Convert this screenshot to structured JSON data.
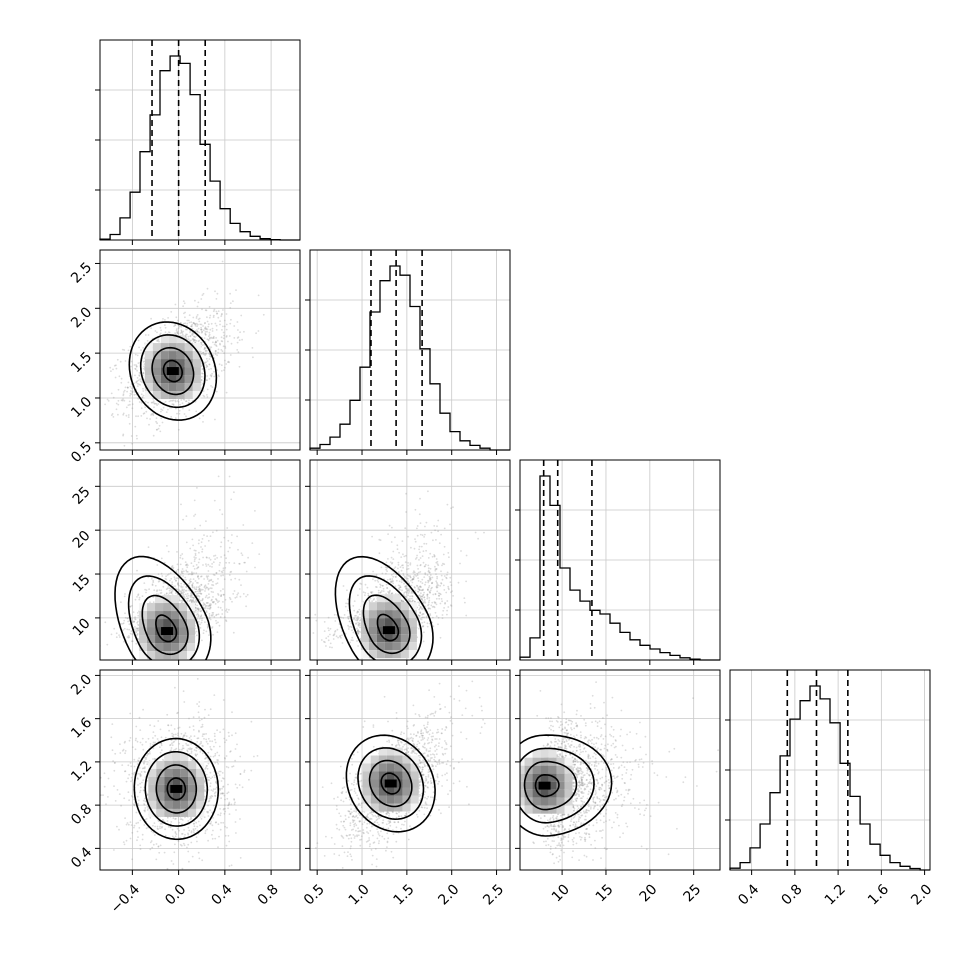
{
  "chart_data": {
    "type": "corner",
    "parameters": [
      {
        "range": [
          -0.68,
          1.05
        ],
        "ticks": [
          "−0.4",
          "0.0",
          "0.4",
          "0.8"
        ],
        "tick_values": [
          -0.4,
          0.0,
          0.4,
          0.8
        ],
        "quantiles": [
          -0.23,
          0.0,
          0.23
        ]
      },
      {
        "range": [
          0.42,
          2.65
        ],
        "ticks": [
          "0.5",
          "1.0",
          "1.5",
          "2.0",
          "2.5"
        ],
        "tick_values": [
          0.5,
          1.0,
          1.5,
          2.0,
          2.5
        ],
        "quantiles": [
          1.1,
          1.38,
          1.67
        ]
      },
      {
        "range": [
          5.2,
          28.0
        ],
        "ticks": [
          "10",
          "15",
          "20",
          "25"
        ],
        "tick_values": [
          10,
          15,
          20,
          25
        ],
        "quantiles": [
          7.9,
          9.5,
          13.4
        ]
      },
      {
        "range": [
          0.2,
          2.05
        ],
        "ticks": [
          "0.4",
          "0.8",
          "1.2",
          "1.6",
          "2.0"
        ],
        "tick_values": [
          0.4,
          0.8,
          1.2,
          1.6,
          2.0
        ],
        "quantiles": [
          0.73,
          1.0,
          1.29
        ]
      }
    ],
    "histograms": [
      {
        "bins": [
          -0.68,
          -0.593,
          -0.507,
          -0.42,
          -0.334,
          -0.247,
          -0.161,
          -0.074,
          0.013,
          0.099,
          0.186,
          0.272,
          0.359,
          0.446,
          0.532,
          0.619,
          0.705,
          0.792,
          0.878,
          0.965,
          1.05
        ],
        "counts": [
          0.005,
          0.03,
          0.12,
          0.26,
          0.48,
          0.68,
          0.92,
          1.0,
          0.96,
          0.79,
          0.52,
          0.32,
          0.17,
          0.09,
          0.045,
          0.02,
          0.007,
          0.002,
          0.0,
          0.0
        ]
      },
      {
        "bins": [
          0.42,
          0.532,
          0.643,
          0.755,
          0.866,
          0.978,
          1.089,
          1.2,
          1.312,
          1.423,
          1.535,
          1.647,
          1.758,
          1.87,
          1.981,
          2.093,
          2.204,
          2.316,
          2.427,
          2.539,
          2.65
        ],
        "counts": [
          0.01,
          0.03,
          0.07,
          0.14,
          0.27,
          0.45,
          0.75,
          0.92,
          1.0,
          0.95,
          0.78,
          0.55,
          0.36,
          0.2,
          0.1,
          0.05,
          0.025,
          0.01,
          0.0,
          0.0
        ]
      },
      {
        "bins": [
          5.2,
          6.34,
          7.48,
          8.62,
          9.76,
          10.9,
          12.04,
          13.18,
          14.32,
          15.46,
          16.6,
          17.74,
          18.88,
          20.02,
          21.16,
          22.3,
          23.44,
          24.58,
          25.72,
          26.86,
          28.0
        ],
        "counts": [
          0.015,
          0.12,
          1.0,
          0.84,
          0.5,
          0.38,
          0.32,
          0.27,
          0.25,
          0.2,
          0.15,
          0.11,
          0.08,
          0.06,
          0.04,
          0.025,
          0.012,
          0.005,
          0.0,
          0.0
        ]
      },
      {
        "bins": [
          0.2,
          0.293,
          0.385,
          0.478,
          0.57,
          0.663,
          0.755,
          0.848,
          0.94,
          1.033,
          1.125,
          1.218,
          1.31,
          1.403,
          1.495,
          1.588,
          1.68,
          1.773,
          1.865,
          1.958,
          2.05
        ],
        "counts": [
          0.01,
          0.04,
          0.12,
          0.25,
          0.42,
          0.62,
          0.82,
          0.92,
          1.0,
          0.93,
          0.8,
          0.58,
          0.4,
          0.25,
          0.14,
          0.08,
          0.04,
          0.02,
          0.008,
          0.0
        ]
      }
    ],
    "pairs": [
      {
        "row": 1,
        "col": 0,
        "mean": [
          0.0,
          1.38
        ],
        "sd": [
          0.23,
          0.3
        ],
        "rho": 0.45,
        "mode": [
          -0.05,
          1.3
        ],
        "skew": [
          0,
          0
        ]
      },
      {
        "row": 2,
        "col": 0,
        "mean": [
          0.0,
          11.0
        ],
        "sd": [
          0.23,
          4.0
        ],
        "rho": 0.5,
        "mode": [
          -0.1,
          8.5
        ],
        "skew": [
          0,
          1
        ]
      },
      {
        "row": 2,
        "col": 1,
        "mean": [
          1.38,
          11.0
        ],
        "sd": [
          0.3,
          4.0
        ],
        "rho": 0.55,
        "mode": [
          1.3,
          8.6
        ],
        "skew": [
          0,
          1
        ]
      },
      {
        "row": 3,
        "col": 0,
        "mean": [
          0.0,
          1.0
        ],
        "sd": [
          0.23,
          0.29
        ],
        "rho": 0.05,
        "mode": [
          -0.02,
          0.95
        ],
        "skew": [
          0,
          0
        ]
      },
      {
        "row": 3,
        "col": 1,
        "mean": [
          1.38,
          1.0
        ],
        "sd": [
          0.3,
          0.29
        ],
        "rho": 0.6,
        "mode": [
          1.32,
          1.0
        ],
        "skew": [
          0,
          0
        ]
      },
      {
        "row": 3,
        "col": 2,
        "mean": [
          11.0,
          1.0
        ],
        "sd": [
          4.0,
          0.29
        ],
        "rho": 0.1,
        "mode": [
          8.0,
          0.98
        ],
        "skew": [
          1,
          0
        ]
      }
    ],
    "grid": true,
    "title": "",
    "xlabel": "",
    "ylabel": ""
  },
  "colors": {
    "axis": "#000000",
    "grid": "#c8c8c8",
    "points": "#9a9a9a",
    "contour": "#000000"
  }
}
